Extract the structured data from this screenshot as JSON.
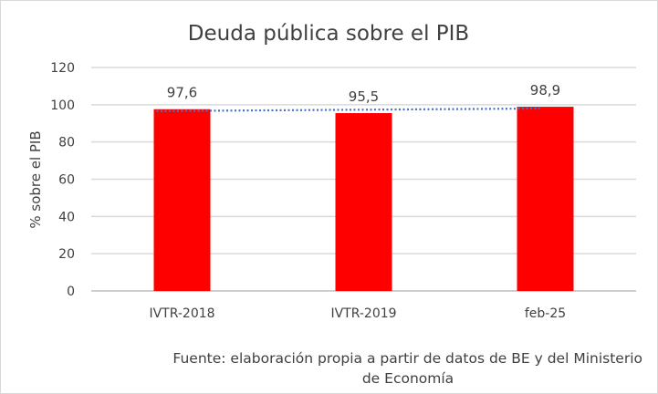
{
  "chart_data": {
    "type": "bar",
    "title": "Deuda pública sobre el PIB",
    "ylabel": "% sobre el PIB",
    "xlabel": "",
    "categories": [
      "IVTR-2018",
      "IVTR-2019",
      "feb-25"
    ],
    "values": [
      97.6,
      95.5,
      98.9
    ],
    "data_labels": [
      "97,6",
      "95,5",
      "98,9"
    ],
    "ylim": [
      0,
      120
    ],
    "yticks": [
      0,
      20,
      40,
      60,
      80,
      100,
      120
    ],
    "grid": true,
    "trendline": {
      "type": "linear",
      "style": "dotted",
      "color": "#4472c4"
    },
    "bar_color": "#ff0000",
    "source_line1": "Fuente: elaboración propia a partir de datos de BE y del Ministerio",
    "source_line2": "de Economía"
  }
}
